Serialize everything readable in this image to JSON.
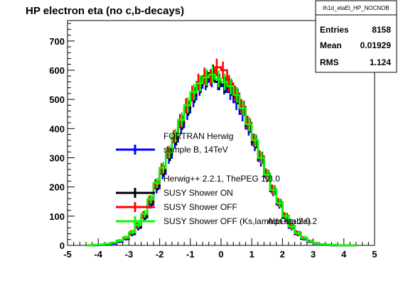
{
  "title": "HP electron eta (no c,b-decays)",
  "stats": {
    "name": "th1d_etaEl_HP_NOCNOB",
    "rows": [
      {
        "label": "Entries",
        "value": "8158"
      },
      {
        "label": "Mean",
        "value": "0.01929"
      },
      {
        "label": "RMS",
        "value": "1.124"
      }
    ]
  },
  "legend": {
    "header1": "FORTRAN Herwig",
    "header2": "Herwig++ 2.2.1, ThePEG 1.3.0",
    "entries": [
      {
        "label": "sample B, 14TeV",
        "color": "#0000ff"
      },
      {
        "label": "SUSY Shower ON",
        "color": "#000000"
      },
      {
        "label": "SUSY Shower OFF",
        "color": "#ff0000"
      },
      {
        "label": "SUSY Shower OFF (Ks,lambda stable)",
        "color": "#00ff00"
      }
    ],
    "overlap_text": "AlpGen 2.0.2"
  },
  "chart_data": {
    "type": "line",
    "title": "HP electron eta (no c,b-decays)",
    "xlabel": "",
    "ylabel": "",
    "xlim": [
      -5,
      5
    ],
    "ylim": [
      0,
      770
    ],
    "x_ticks": [
      "-5",
      "-4",
      "-3",
      "-2",
      "-1",
      "0",
      "1",
      "2",
      "3",
      "4",
      "5"
    ],
    "y_ticks": [
      "0",
      "100",
      "200",
      "300",
      "400",
      "500",
      "600",
      "700"
    ],
    "x": [
      -4.3,
      -4.1,
      -3.9,
      -3.7,
      -3.5,
      -3.3,
      -3.1,
      -2.9,
      -2.7,
      -2.5,
      -2.3,
      -2.1,
      -1.9,
      -1.7,
      -1.5,
      -1.3,
      -1.1,
      -0.9,
      -0.7,
      -0.5,
      -0.3,
      -0.1,
      0.1,
      0.3,
      0.5,
      0.7,
      0.9,
      1.1,
      1.3,
      1.5,
      1.7,
      1.9,
      2.1,
      2.3,
      2.5,
      2.7,
      2.9,
      3.1,
      3.3,
      3.5,
      3.7,
      3.9,
      4.1,
      4.3
    ],
    "series": [
      {
        "name": "sample B, 14TeV",
        "color": "#0000ff",
        "values": [
          0,
          0,
          1,
          3,
          6,
          12,
          22,
          38,
          60,
          95,
          140,
          195,
          245,
          300,
          355,
          405,
          455,
          500,
          540,
          560,
          570,
          560,
          545,
          525,
          490,
          450,
          400,
          345,
          290,
          235,
          185,
          140,
          95,
          60,
          38,
          22,
          12,
          6,
          3,
          1,
          0,
          0,
          0,
          0
        ]
      },
      {
        "name": "SUSY Shower ON",
        "color": "#000000",
        "values": [
          0,
          1,
          2,
          4,
          8,
          15,
          25,
          42,
          65,
          100,
          150,
          205,
          255,
          310,
          365,
          420,
          470,
          515,
          550,
          570,
          590,
          560,
          550,
          540,
          510,
          470,
          410,
          355,
          300,
          240,
          190,
          145,
          100,
          65,
          42,
          25,
          14,
          7,
          4,
          2,
          1,
          0,
          0,
          0
        ]
      },
      {
        "name": "SUSY Shower OFF",
        "color": "#ff0000",
        "values": [
          0,
          1,
          3,
          5,
          9,
          16,
          26,
          44,
          68,
          105,
          155,
          210,
          262,
          318,
          372,
          425,
          478,
          520,
          560,
          580,
          575,
          610,
          600,
          555,
          520,
          475,
          420,
          360,
          305,
          245,
          192,
          148,
          102,
          66,
          44,
          26,
          15,
          8,
          4,
          2,
          1,
          0,
          0,
          0
        ]
      },
      {
        "name": "SUSY Shower OFF (Ks,lambda stable)",
        "color": "#00ff00",
        "values": [
          0,
          1,
          2,
          5,
          9,
          16,
          27,
          45,
          70,
          108,
          158,
          214,
          266,
          320,
          376,
          430,
          480,
          525,
          555,
          575,
          585,
          570,
          560,
          545,
          515,
          470,
          415,
          360,
          300,
          242,
          190,
          145,
          100,
          64,
          42,
          26,
          14,
          7,
          4,
          2,
          1,
          0,
          0,
          0
        ]
      }
    ]
  }
}
